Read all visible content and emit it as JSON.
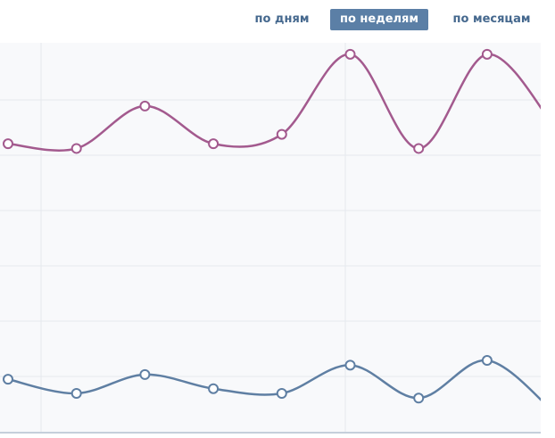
{
  "period_switcher": {
    "buttons": [
      {
        "label": "по дням",
        "active": false
      },
      {
        "label": "по неделям",
        "active": true
      },
      {
        "label": "по месяцам",
        "active": false
      }
    ]
  },
  "colors": {
    "series_top": "#a35a8e",
    "series_bottom": "#5f7fa3",
    "grid": "#e6e9ee",
    "plot_bg": "#f8f9fb",
    "axis": "#c5cfdb",
    "active_button_bg": "#5b7fa6",
    "button_text": "#45688e"
  },
  "chart_data": {
    "type": "line",
    "smooth": true,
    "grid": true,
    "x": [
      0,
      1,
      2,
      3,
      4,
      5,
      6,
      7
    ],
    "ylim": [
      0,
      100
    ],
    "series": [
      {
        "values": [
          78,
          77,
          86,
          78,
          80,
          97,
          77,
          97
        ],
        "color": "#a35a8e"
      },
      {
        "values": [
          28,
          25,
          29,
          26,
          25,
          31,
          24,
          32
        ],
        "color": "#5f7fa3"
      }
    ]
  }
}
